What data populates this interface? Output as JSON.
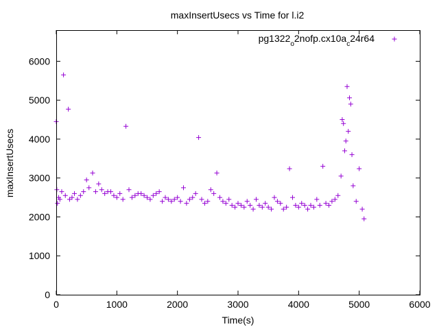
{
  "chart_data": {
    "type": "scatter",
    "title": "maxInsertUsecs vs Time for l.i2",
    "xlabel": "Time(s)",
    "ylabel": "maxInsertUsecs",
    "xlim": [
      0,
      6000
    ],
    "ylim": [
      0,
      6800
    ],
    "xticks": [
      0,
      1000,
      2000,
      3000,
      4000,
      5000,
      6000
    ],
    "yticks": [
      0,
      1000,
      2000,
      3000,
      4000,
      5000,
      6000
    ],
    "xtick_labels": [
      "0",
      "1000",
      "2000",
      "3000",
      "4000",
      "5000",
      "6000"
    ],
    "ytick_labels": [
      "0",
      "1000",
      "2000",
      "3000",
      "4000",
      "5000",
      "6000"
    ],
    "grid": false,
    "legend_position": "top-right",
    "marker": "plus",
    "series": [
      {
        "name_parts": [
          "pg1322",
          "o",
          "2nofp.cx10a",
          "c",
          "24r64"
        ],
        "color": "#9400d3",
        "points": [
          [
            0,
            4450
          ],
          [
            10,
            2700
          ],
          [
            20,
            2350
          ],
          [
            40,
            2500
          ],
          [
            60,
            2450
          ],
          [
            90,
            2650
          ],
          [
            120,
            5650
          ],
          [
            150,
            2550
          ],
          [
            200,
            4770
          ],
          [
            220,
            2450
          ],
          [
            260,
            2500
          ],
          [
            300,
            2600
          ],
          [
            350,
            2450
          ],
          [
            400,
            2550
          ],
          [
            450,
            2650
          ],
          [
            500,
            2950
          ],
          [
            540,
            2750
          ],
          [
            600,
            3130
          ],
          [
            650,
            2650
          ],
          [
            700,
            2850
          ],
          [
            750,
            2700
          ],
          [
            800,
            2600
          ],
          [
            850,
            2650
          ],
          [
            900,
            2650
          ],
          [
            950,
            2550
          ],
          [
            1000,
            2500
          ],
          [
            1050,
            2600
          ],
          [
            1100,
            2450
          ],
          [
            1150,
            4330
          ],
          [
            1200,
            2700
          ],
          [
            1250,
            2500
          ],
          [
            1300,
            2550
          ],
          [
            1350,
            2600
          ],
          [
            1400,
            2600
          ],
          [
            1450,
            2550
          ],
          [
            1500,
            2500
          ],
          [
            1550,
            2450
          ],
          [
            1600,
            2550
          ],
          [
            1650,
            2600
          ],
          [
            1700,
            2650
          ],
          [
            1750,
            2400
          ],
          [
            1800,
            2500
          ],
          [
            1850,
            2450
          ],
          [
            1900,
            2400
          ],
          [
            1950,
            2450
          ],
          [
            2000,
            2500
          ],
          [
            2050,
            2400
          ],
          [
            2100,
            2750
          ],
          [
            2150,
            2350
          ],
          [
            2200,
            2450
          ],
          [
            2250,
            2500
          ],
          [
            2300,
            2600
          ],
          [
            2350,
            4040
          ],
          [
            2400,
            2450
          ],
          [
            2450,
            2350
          ],
          [
            2500,
            2400
          ],
          [
            2550,
            2700
          ],
          [
            2600,
            2600
          ],
          [
            2650,
            3130
          ],
          [
            2700,
            2500
          ],
          [
            2750,
            2400
          ],
          [
            2800,
            2350
          ],
          [
            2850,
            2450
          ],
          [
            2900,
            2300
          ],
          [
            2950,
            2250
          ],
          [
            3000,
            2350
          ],
          [
            3050,
            2300
          ],
          [
            3100,
            2250
          ],
          [
            3150,
            2400
          ],
          [
            3200,
            2300
          ],
          [
            3250,
            2200
          ],
          [
            3300,
            2450
          ],
          [
            3350,
            2300
          ],
          [
            3400,
            2250
          ],
          [
            3450,
            2350
          ],
          [
            3500,
            2250
          ],
          [
            3550,
            2200
          ],
          [
            3600,
            2500
          ],
          [
            3650,
            2400
          ],
          [
            3700,
            2350
          ],
          [
            3750,
            2200
          ],
          [
            3800,
            2250
          ],
          [
            3850,
            3240
          ],
          [
            3900,
            2500
          ],
          [
            3950,
            2300
          ],
          [
            4000,
            2250
          ],
          [
            4050,
            2350
          ],
          [
            4100,
            2300
          ],
          [
            4150,
            2200
          ],
          [
            4200,
            2300
          ],
          [
            4250,
            2250
          ],
          [
            4300,
            2450
          ],
          [
            4350,
            2300
          ],
          [
            4400,
            3300
          ],
          [
            4450,
            2350
          ],
          [
            4500,
            2300
          ],
          [
            4550,
            2400
          ],
          [
            4600,
            2450
          ],
          [
            4650,
            2550
          ],
          [
            4700,
            3050
          ],
          [
            4720,
            4500
          ],
          [
            4740,
            4400
          ],
          [
            4760,
            3700
          ],
          [
            4780,
            3950
          ],
          [
            4800,
            5350
          ],
          [
            4820,
            4200
          ],
          [
            4840,
            5060
          ],
          [
            4860,
            4900
          ],
          [
            4880,
            3600
          ],
          [
            4900,
            2800
          ],
          [
            4950,
            2400
          ],
          [
            5000,
            3240
          ],
          [
            5050,
            2200
          ],
          [
            5080,
            1950
          ]
        ]
      }
    ]
  }
}
